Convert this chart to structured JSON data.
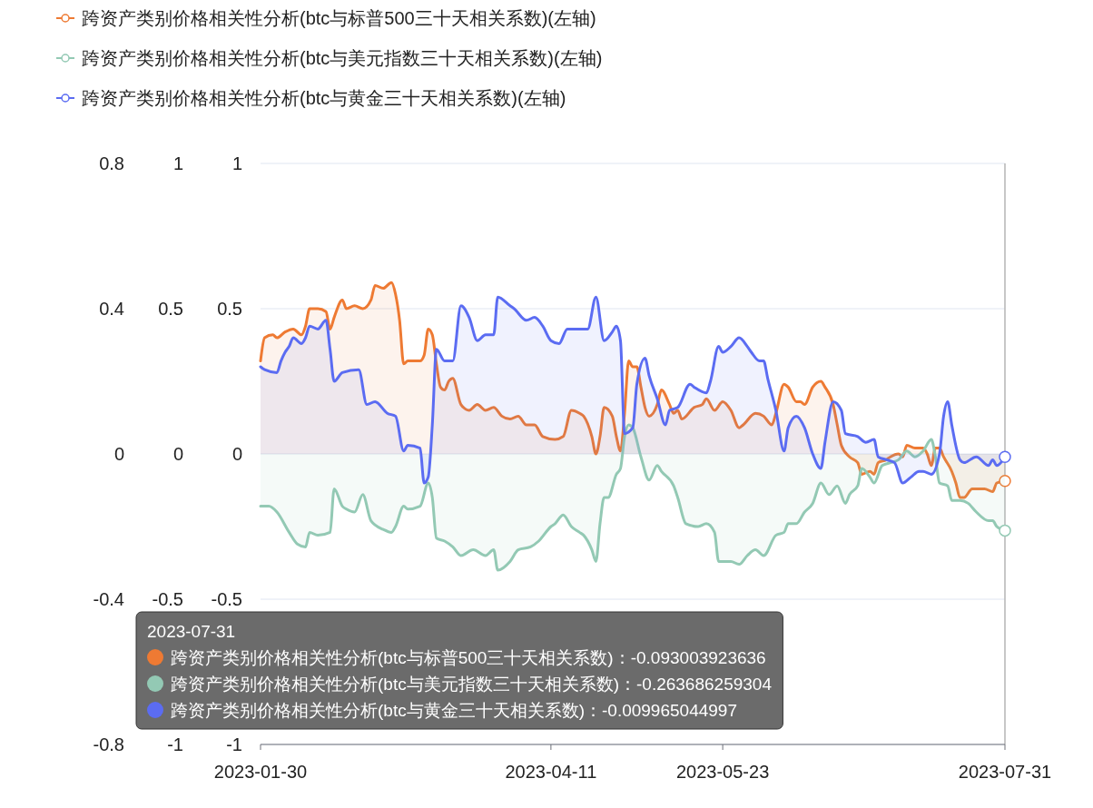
{
  "chart_data": {
    "type": "area",
    "xlim": [
      "2023-01-30",
      "2023-07-31"
    ],
    "xticks": [
      "2023-01-30",
      "2023-04-11",
      "2023-05-23",
      "2023-07-31"
    ],
    "ylim": [
      -1,
      1
    ],
    "yticks": [
      -1,
      -0.5,
      0,
      0.5,
      1
    ],
    "y2lim": [
      -1,
      1
    ],
    "y2ticks": [
      -1,
      -0.5,
      0,
      0.5,
      1
    ],
    "y3lim": [
      -0.8,
      0.8
    ],
    "y3ticks": [
      -0.8,
      -0.4,
      0,
      0.4,
      0.8
    ],
    "grid": "y",
    "legend": "top left",
    "ref_lines": [
      {
        "axis": "x",
        "value": "2023-07-31",
        "color": "#b4b4b4"
      }
    ],
    "annotations": [
      "2023-07-31",
      "跨资产类别价格相关性分析(btc与标普500三十天相关系数)：-0.093003923636",
      "跨资产类别价格相关性分析(btc与美元指数三十天相关系数)：-0.263686259304",
      "跨资产类别价格相关性分析(btc与黄金三十天相关系数)：-0.009965044997"
    ],
    "series": [
      {
        "name": "跨资产类别价格相关性分析(btc与标普500三十天相关系数)(左轴)",
        "color": "#ee7a33",
        "x": [
          "2023-01-30",
          "2023-01-31",
          "2023-02-02",
          "2023-02-03",
          "2023-02-05",
          "2023-02-07",
          "2023-02-09",
          "2023-02-10",
          "2023-02-11",
          "2023-02-13",
          "2023-02-15",
          "2023-02-16",
          "2023-02-17",
          "2023-02-19",
          "2023-02-20",
          "2023-02-22",
          "2023-02-24",
          "2023-02-26",
          "2023-02-27",
          "2023-03-01",
          "2023-03-03",
          "2023-03-04",
          "2023-03-05",
          "2023-03-06",
          "2023-03-07",
          "2023-03-10",
          "2023-03-11",
          "2023-03-12",
          "2023-03-13",
          "2023-03-14",
          "2023-03-15",
          "2023-03-16",
          "2023-03-17",
          "2023-03-18",
          "2023-03-20",
          "2023-03-22",
          "2023-03-24",
          "2023-03-26",
          "2023-03-28",
          "2023-03-30",
          "2023-04-01",
          "2023-04-03",
          "2023-04-05",
          "2023-04-07",
          "2023-04-09",
          "2023-04-12",
          "2023-04-14",
          "2023-04-16",
          "2023-04-18",
          "2023-04-19",
          "2023-04-21",
          "2023-04-22",
          "2023-04-23",
          "2023-04-24",
          "2023-04-26",
          "2023-04-27",
          "2023-04-28",
          "2023-04-29",
          "2023-04-30",
          "2023-05-01",
          "2023-05-02",
          "2023-05-03",
          "2023-05-04",
          "2023-05-05",
          "2023-05-07",
          "2023-05-08",
          "2023-05-10",
          "2023-05-11",
          "2023-05-12",
          "2023-05-13",
          "2023-05-16",
          "2023-05-18",
          "2023-05-19",
          "2023-05-21",
          "2023-05-23",
          "2023-05-25",
          "2023-05-27",
          "2023-05-28",
          "2023-05-31",
          "2023-06-02",
          "2023-06-04",
          "2023-06-05",
          "2023-06-07",
          "2023-06-08",
          "2023-06-10",
          "2023-06-11",
          "2023-06-12",
          "2023-06-14",
          "2023-06-16",
          "2023-06-17",
          "2023-06-19",
          "2023-06-20",
          "2023-06-21",
          "2023-06-23",
          "2023-06-25",
          "2023-06-26",
          "2023-06-28",
          "2023-06-29",
          "2023-06-30",
          "2023-07-02",
          "2023-07-03",
          "2023-07-05",
          "2023-07-06",
          "2023-07-07",
          "2023-07-09",
          "2023-07-11",
          "2023-07-12",
          "2023-07-13",
          "2023-07-14",
          "2023-07-15",
          "2023-07-16",
          "2023-07-18",
          "2023-07-19",
          "2023-07-20",
          "2023-07-21",
          "2023-07-23",
          "2023-07-26",
          "2023-07-28",
          "2023-07-29",
          "2023-07-31"
        ],
        "values": [
          0.32,
          0.4,
          0.41,
          0.4,
          0.42,
          0.43,
          0.41,
          0.44,
          0.5,
          0.5,
          0.49,
          0.43,
          0.47,
          0.53,
          0.5,
          0.51,
          0.5,
          0.53,
          0.58,
          0.57,
          0.59,
          0.55,
          0.46,
          0.31,
          0.32,
          0.32,
          0.34,
          0.43,
          0.41,
          0.31,
          0.23,
          0.22,
          0.25,
          0.26,
          0.17,
          0.15,
          0.17,
          0.15,
          0.16,
          0.13,
          0.12,
          0.13,
          0.1,
          0.1,
          0.06,
          0.05,
          0.06,
          0.15,
          0.14,
          0.13,
          0.06,
          0.0,
          0.06,
          0.16,
          0.13,
          0.06,
          0.01,
          0.14,
          0.32,
          0.3,
          0.3,
          0.23,
          0.16,
          0.13,
          0.17,
          0.22,
          0.17,
          0.14,
          0.15,
          0.12,
          0.16,
          0.17,
          0.19,
          0.15,
          0.18,
          0.15,
          0.09,
          0.1,
          0.14,
          0.13,
          0.1,
          0.14,
          0.24,
          0.23,
          0.18,
          0.18,
          0.17,
          0.23,
          0.25,
          0.23,
          0.17,
          0.1,
          0.03,
          -0.01,
          -0.03,
          -0.07,
          -0.06,
          -0.07,
          -0.03,
          -0.02,
          -0.01,
          0.0,
          -0.01,
          0.03,
          0.02,
          0.02,
          0.0,
          -0.04,
          0.02,
          0.02,
          -0.01,
          -0.06,
          -0.1,
          -0.15,
          -0.15,
          -0.12,
          -0.12,
          -0.13,
          -0.1,
          -0.093003923636
        ]
      },
      {
        "name": "跨资产类别价格相关性分析(btc与美元指数三十天相关系数)(左轴)",
        "color": "#93c9b4",
        "x": [
          "2023-01-30",
          "2023-02-01",
          "2023-02-03",
          "2023-02-06",
          "2023-02-08",
          "2023-02-10",
          "2023-02-11",
          "2023-02-13",
          "2023-02-16",
          "2023-02-17",
          "2023-02-19",
          "2023-02-20",
          "2023-02-22",
          "2023-02-24",
          "2023-02-26",
          "2023-03-01",
          "2023-03-03",
          "2023-03-04",
          "2023-03-06",
          "2023-03-07",
          "2023-03-10",
          "2023-03-12",
          "2023-03-13",
          "2023-03-14",
          "2023-03-16",
          "2023-03-18",
          "2023-03-20",
          "2023-03-23",
          "2023-03-26",
          "2023-03-28",
          "2023-03-29",
          "2023-04-01",
          "2023-04-03",
          "2023-04-06",
          "2023-04-08",
          "2023-04-11",
          "2023-04-12",
          "2023-04-14",
          "2023-04-16",
          "2023-04-18",
          "2023-04-19",
          "2023-04-21",
          "2023-04-22",
          "2023-04-23",
          "2023-04-24",
          "2023-04-25",
          "2023-04-27",
          "2023-04-28",
          "2023-04-29",
          "2023-04-30",
          "2023-05-01",
          "2023-05-03",
          "2023-05-05",
          "2023-05-07",
          "2023-05-08",
          "2023-05-11",
          "2023-05-12",
          "2023-05-14",
          "2023-05-17",
          "2023-05-19",
          "2023-05-21",
          "2023-05-22",
          "2023-05-25",
          "2023-05-27",
          "2023-05-29",
          "2023-05-31",
          "2023-06-02",
          "2023-06-05",
          "2023-06-07",
          "2023-06-08",
          "2023-06-10",
          "2023-06-12",
          "2023-06-14",
          "2023-06-16",
          "2023-06-18",
          "2023-06-20",
          "2023-06-22",
          "2023-06-23",
          "2023-06-25",
          "2023-06-26",
          "2023-06-28",
          "2023-06-29",
          "2023-07-01",
          "2023-07-03",
          "2023-07-05",
          "2023-07-07",
          "2023-07-09",
          "2023-07-11",
          "2023-07-13",
          "2023-07-14",
          "2023-07-15",
          "2023-07-17",
          "2023-07-18",
          "2023-07-20",
          "2023-07-22",
          "2023-07-24",
          "2023-07-27",
          "2023-07-28",
          "2023-07-29",
          "2023-07-31"
        ],
        "values": [
          -0.18,
          -0.18,
          -0.2,
          -0.27,
          -0.31,
          -0.32,
          -0.27,
          -0.28,
          -0.27,
          -0.12,
          -0.18,
          -0.19,
          -0.2,
          -0.14,
          -0.23,
          -0.26,
          -0.27,
          -0.25,
          -0.18,
          -0.19,
          -0.18,
          -0.1,
          -0.15,
          -0.29,
          -0.3,
          -0.32,
          -0.35,
          -0.33,
          -0.35,
          -0.33,
          -0.4,
          -0.37,
          -0.33,
          -0.32,
          -0.3,
          -0.25,
          -0.24,
          -0.21,
          -0.25,
          -0.27,
          -0.28,
          -0.33,
          -0.37,
          -0.24,
          -0.15,
          -0.15,
          -0.07,
          -0.05,
          0.06,
          0.1,
          0.09,
          -0.01,
          -0.09,
          -0.04,
          -0.06,
          -0.11,
          -0.15,
          -0.24,
          -0.25,
          -0.24,
          -0.27,
          -0.37,
          -0.37,
          -0.38,
          -0.35,
          -0.33,
          -0.35,
          -0.28,
          -0.27,
          -0.24,
          -0.24,
          -0.2,
          -0.17,
          -0.1,
          -0.14,
          -0.11,
          -0.17,
          -0.14,
          -0.11,
          -0.05,
          -0.08,
          -0.1,
          -0.04,
          -0.03,
          -0.02,
          0.01,
          -0.01,
          0.01,
          0.05,
          -0.01,
          -0.1,
          -0.11,
          -0.16,
          -0.16,
          -0.17,
          -0.2,
          -0.23,
          -0.23,
          -0.25,
          -0.263686259304
        ]
      },
      {
        "name": "跨资产类别价格相关性分析(btc与黄金三十天相关系数)(左轴)",
        "color": "#5b6cf2",
        "x": [
          "2023-01-30",
          "2023-01-31",
          "2023-02-03",
          "2023-02-04",
          "2023-02-05",
          "2023-02-06",
          "2023-02-07",
          "2023-02-09",
          "2023-02-10",
          "2023-02-11",
          "2023-02-13",
          "2023-02-15",
          "2023-02-16",
          "2023-02-17",
          "2023-02-19",
          "2023-02-23",
          "2023-02-25",
          "2023-02-27",
          "2023-03-02",
          "2023-03-04",
          "2023-03-06",
          "2023-03-07",
          "2023-03-10",
          "2023-03-11",
          "2023-03-12",
          "2023-03-13",
          "2023-03-14",
          "2023-03-16",
          "2023-03-18",
          "2023-03-20",
          "2023-03-22",
          "2023-03-24",
          "2023-03-26",
          "2023-03-28",
          "2023-03-29",
          "2023-04-01",
          "2023-04-02",
          "2023-04-05",
          "2023-04-07",
          "2023-04-09",
          "2023-04-11",
          "2023-04-13",
          "2023-04-15",
          "2023-04-18",
          "2023-04-20",
          "2023-04-22",
          "2023-04-24",
          "2023-04-26",
          "2023-04-27",
          "2023-04-28",
          "2023-04-29",
          "2023-05-01",
          "2023-05-02",
          "2023-05-04",
          "2023-05-05",
          "2023-05-07",
          "2023-05-09",
          "2023-05-10",
          "2023-05-12",
          "2023-05-15",
          "2023-05-16",
          "2023-05-19",
          "2023-05-20",
          "2023-05-22",
          "2023-05-23",
          "2023-05-25",
          "2023-05-27",
          "2023-05-29",
          "2023-05-30",
          "2023-06-01",
          "2023-06-02",
          "2023-06-03",
          "2023-06-05",
          "2023-06-07",
          "2023-06-08",
          "2023-06-10",
          "2023-06-12",
          "2023-06-14",
          "2023-06-16",
          "2023-06-17",
          "2023-06-19",
          "2023-06-21",
          "2023-06-22",
          "2023-06-25",
          "2023-06-27",
          "2023-06-29",
          "2023-06-30",
          "2023-07-02",
          "2023-07-04",
          "2023-07-06",
          "2023-07-08",
          "2023-07-10",
          "2023-07-11",
          "2023-07-13",
          "2023-07-15",
          "2023-07-16",
          "2023-07-17",
          "2023-07-18",
          "2023-07-20",
          "2023-07-21",
          "2023-07-24",
          "2023-07-27",
          "2023-07-28",
          "2023-07-29",
          "2023-07-31"
        ],
        "values": [
          0.3,
          0.29,
          0.28,
          0.32,
          0.35,
          0.37,
          0.4,
          0.38,
          0.4,
          0.44,
          0.43,
          0.46,
          0.36,
          0.25,
          0.28,
          0.29,
          0.17,
          0.18,
          0.14,
          0.13,
          0.01,
          0.03,
          0.02,
          -0.1,
          -0.08,
          0.1,
          0.36,
          0.32,
          0.32,
          0.51,
          0.47,
          0.39,
          0.41,
          0.41,
          0.54,
          0.51,
          0.5,
          0.46,
          0.47,
          0.44,
          0.39,
          0.38,
          0.43,
          0.43,
          0.43,
          0.54,
          0.39,
          0.42,
          0.44,
          0.39,
          0.07,
          0.09,
          0.24,
          0.33,
          0.27,
          0.19,
          0.1,
          0.15,
          0.16,
          0.24,
          0.23,
          0.21,
          0.25,
          0.37,
          0.35,
          0.37,
          0.4,
          0.37,
          0.35,
          0.32,
          0.32,
          0.26,
          0.15,
          0.01,
          0.09,
          0.13,
          0.09,
          0.0,
          -0.05,
          0.04,
          0.18,
          0.15,
          0.07,
          0.06,
          0.04,
          0.05,
          -0.01,
          -0.02,
          -0.03,
          -0.1,
          -0.08,
          -0.06,
          -0.06,
          -0.07,
          0.0,
          0.13,
          0.18,
          0.1,
          -0.02,
          -0.03,
          -0.01,
          -0.04,
          -0.02,
          -0.04,
          -0.009965044997
        ]
      }
    ]
  }
}
